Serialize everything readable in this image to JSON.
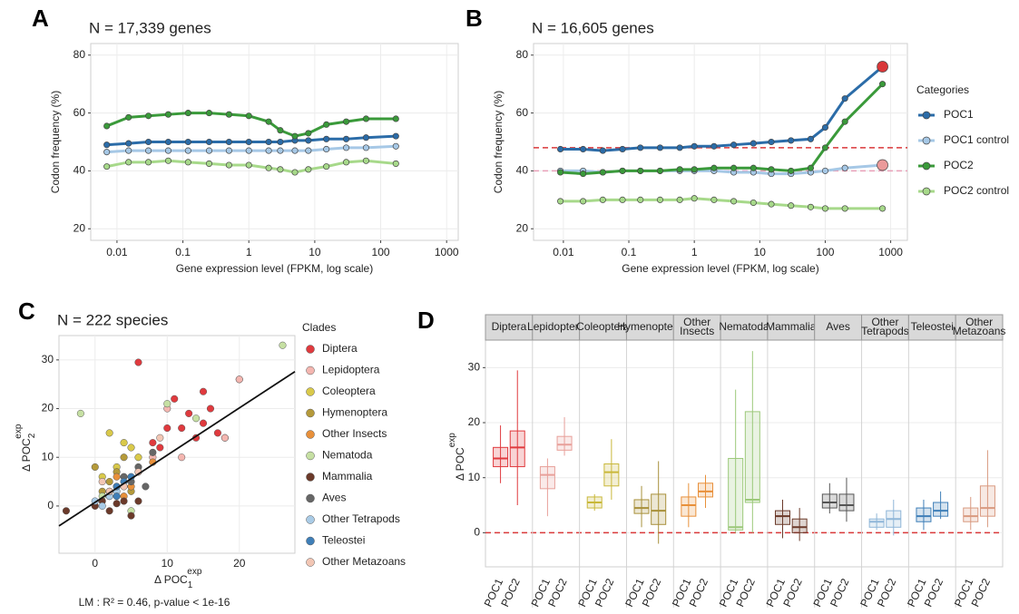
{
  "chart_data": [
    {
      "type": "line",
      "panel": "A",
      "title": "N = 17,339 genes",
      "xlabel": "Gene expression level (FPKM, log scale)",
      "ylabel": "Codon frequency (%)",
      "log_x": true,
      "grid": true,
      "legend": false,
      "xlim": [
        0.004,
        1500
      ],
      "xticks": [
        0.01,
        0.1,
        1,
        10,
        100,
        1000
      ],
      "ylim": [
        16,
        84
      ],
      "yticks": [
        20,
        40,
        60,
        80
      ],
      "x": [
        0.007,
        0.015,
        0.03,
        0.06,
        0.12,
        0.25,
        0.5,
        1,
        2,
        3,
        5,
        8,
        15,
        30,
        60,
        170
      ],
      "series": [
        {
          "name": "POC1",
          "color": "#2b6ca8",
          "values": [
            49,
            49.5,
            50,
            50,
            50,
            50,
            50,
            50,
            50,
            50,
            50.5,
            50.5,
            51,
            51,
            51.5,
            52
          ]
        },
        {
          "name": "POC1 control",
          "color": "#a6c8e6",
          "values": [
            46.5,
            47,
            47,
            47,
            47,
            47,
            47,
            47,
            47,
            47,
            47,
            47,
            47.5,
            48,
            48,
            48.5
          ]
        },
        {
          "name": "POC2",
          "color": "#3a9a3a",
          "values": [
            55.5,
            58.5,
            59,
            59.5,
            60,
            60,
            59.5,
            59,
            57,
            54,
            52,
            53,
            56,
            57,
            58,
            58
          ]
        },
        {
          "name": "POC2 control",
          "color": "#a7d98a",
          "values": [
            41.5,
            43,
            43,
            43.5,
            43,
            42.5,
            42,
            42,
            41,
            40.5,
            39.5,
            40.5,
            41.5,
            43,
            43.5,
            42.5
          ]
        }
      ]
    },
    {
      "type": "line",
      "panel": "B",
      "title": "N = 16,605 genes",
      "xlabel": "Gene expression level (FPKM, log scale)",
      "ylabel": "Codon frequency (%)",
      "log_x": true,
      "grid": true,
      "legend": "right",
      "legend_title": "Categories",
      "xlim": [
        0.0035,
        1800
      ],
      "xticks": [
        0.01,
        0.1,
        1,
        10,
        100,
        1000
      ],
      "ylim": [
        16,
        84
      ],
      "yticks": [
        20,
        40,
        60,
        80
      ],
      "hlines": [
        {
          "value": 48,
          "color": "#d9383a"
        },
        {
          "value": 40,
          "color": "#e8a0b8"
        }
      ],
      "x": [
        0.009,
        0.02,
        0.04,
        0.08,
        0.15,
        0.3,
        0.6,
        1,
        2,
        4,
        8,
        15,
        30,
        60,
        100,
        200,
        750
      ],
      "series": [
        {
          "name": "POC1",
          "color": "#2b6ca8",
          "end_marker": "#d9383a",
          "values": [
            47.5,
            47.5,
            47,
            47.5,
            48,
            48,
            48,
            48.5,
            48.5,
            49,
            49.5,
            50,
            50.5,
            51,
            55,
            65,
            76
          ]
        },
        {
          "name": "POC1 control",
          "color": "#a6c8e6",
          "end_marker": "#eb9a9a",
          "values": [
            40,
            40,
            39.5,
            40,
            40,
            40,
            40,
            40,
            40,
            39.5,
            39.5,
            39,
            39,
            39.5,
            40,
            41,
            42
          ]
        },
        {
          "name": "POC2",
          "color": "#3a9a3a",
          "values": [
            39.5,
            39,
            39.5,
            40,
            40,
            40,
            40.5,
            40.5,
            41,
            41,
            41,
            40.5,
            40,
            41,
            48,
            57,
            70
          ]
        },
        {
          "name": "POC2 control",
          "color": "#a7d98a",
          "values": [
            29.5,
            29.5,
            30,
            30,
            30,
            30,
            30,
            30.5,
            30,
            29.5,
            29,
            28.5,
            28,
            27.5,
            27,
            27,
            27
          ]
        }
      ]
    },
    {
      "type": "scatter",
      "panel": "C",
      "title": "N = 222 species",
      "legend_title": "Clades",
      "xlabel": {
        "text": "Δ POC",
        "sub": "1",
        "sup": "exp"
      },
      "ylabel": {
        "text": "Δ POC",
        "sub": "2",
        "sup": "exp"
      },
      "annotation": "LM : R² = 0.46, p-value < 1e-16",
      "xlim": [
        -5,
        27.7
      ],
      "xticks": [
        0,
        10,
        20
      ],
      "ylim": [
        -9.7,
        35
      ],
      "yticks": [
        0,
        10,
        20,
        30
      ],
      "grid": true,
      "fit": {
        "x": [
          -5,
          27.7
        ],
        "y": [
          -4.1,
          27.6
        ]
      },
      "series": [
        {
          "name": "Diptera",
          "color": "#e03a3e",
          "x": [
            6,
            10,
            12,
            13,
            15,
            16,
            14,
            9,
            18,
            11,
            17,
            20,
            15,
            8
          ],
          "y": [
            29.5,
            16,
            16,
            19,
            17,
            20,
            14,
            12,
            14,
            22,
            15,
            26,
            23.5,
            13
          ]
        },
        {
          "name": "Lepidoptera",
          "color": "#f4b6b0",
          "x": [
            20,
            8,
            10,
            12,
            18
          ],
          "y": [
            26,
            10,
            20,
            10,
            14
          ]
        },
        {
          "name": "Coleoptera",
          "color": "#d9c94a",
          "x": [
            2,
            4,
            6,
            3,
            1,
            5
          ],
          "y": [
            15,
            13,
            10,
            8,
            6,
            12
          ]
        },
        {
          "name": "Hymenoptera",
          "color": "#b59a3a",
          "x": [
            0,
            2,
            4,
            5,
            3,
            1
          ],
          "y": [
            8,
            5,
            10,
            3,
            7,
            3
          ]
        },
        {
          "name": "Other Insects",
          "color": "#e8903a",
          "x": [
            3,
            6,
            8,
            5,
            4
          ],
          "y": [
            6,
            7,
            9,
            4,
            2
          ]
        },
        {
          "name": "Nematoda",
          "color": "#c6e0a3",
          "x": [
            26,
            10,
            -2,
            5,
            14,
            1
          ],
          "y": [
            33,
            21,
            19,
            -1,
            18,
            2
          ]
        },
        {
          "name": "Mammalia",
          "color": "#6b3a2a",
          "x": [
            -4,
            0,
            1,
            2,
            3,
            4,
            5,
            2,
            6
          ],
          "y": [
            -1,
            0,
            1,
            -1,
            0.5,
            1,
            -2,
            2,
            1
          ]
        },
        {
          "name": "Aves",
          "color": "#666666",
          "x": [
            5,
            7,
            6,
            4,
            8,
            3
          ],
          "y": [
            5,
            4,
            8,
            6,
            11,
            4
          ]
        },
        {
          "name": "Other Tetrapods",
          "color": "#a9cbe6",
          "x": [
            2,
            0,
            3,
            1
          ],
          "y": [
            2,
            1,
            3,
            0
          ]
        },
        {
          "name": "Teleostei",
          "color": "#3f7fb8",
          "x": [
            3,
            4,
            2,
            5,
            3
          ],
          "y": [
            4,
            5,
            3,
            6,
            2
          ]
        },
        {
          "name": "Other Metazoans",
          "color": "#f2c6b4",
          "x": [
            2,
            4,
            9,
            6,
            1
          ],
          "y": [
            3,
            4,
            14,
            7,
            5
          ]
        }
      ]
    },
    {
      "type": "box",
      "panel": "D",
      "ylabel": {
        "text": "Δ POC",
        "sup": "exp"
      },
      "ylim": [
        -6.2,
        35
      ],
      "yticks": [
        0,
        10,
        20,
        30
      ],
      "grid": true,
      "hline": {
        "value": 0,
        "color": "#d9383a"
      },
      "categories": [
        "Diptera",
        "Lepidoptera",
        "Coleoptera",
        "Hymenoptera",
        "Other Insects",
        "Nematoda",
        "Mammalia",
        "Aves",
        "Other Tetrapods",
        "Teleostei",
        "Other Metazoans"
      ],
      "colors": [
        "#e03a3e",
        "#e8a09a",
        "#c9b83a",
        "#a8903a",
        "#e8903a",
        "#9cc87a",
        "#6b3a2a",
        "#555555",
        "#8fb6d8",
        "#3f7fb8",
        "#d99a80"
      ],
      "series": [
        {
          "name": "POC1",
          "boxes": [
            {
              "low": 9,
              "q1": 12,
              "median": 13.5,
              "q3": 15.5,
              "high": 19.5
            },
            {
              "low": 3,
              "q1": 8,
              "median": 10.5,
              "q3": 12,
              "high": 13.5
            },
            {
              "low": 4,
              "q1": 4.5,
              "median": 5.5,
              "q3": 6.5,
              "high": 7
            },
            {
              "low": 1,
              "q1": 3.5,
              "median": 4.5,
              "q3": 6,
              "high": 8.5
            },
            {
              "low": 1,
              "q1": 3,
              "median": 5,
              "q3": 6.5,
              "high": 9
            },
            {
              "low": 0,
              "q1": 0.5,
              "median": 1,
              "q3": 13.5,
              "high": 26
            },
            {
              "low": -1,
              "q1": 1.5,
              "median": 3,
              "q3": 4,
              "high": 6
            },
            {
              "low": 3.5,
              "q1": 4.5,
              "median": 5.5,
              "q3": 7,
              "high": 9
            },
            {
              "low": 0.5,
              "q1": 1,
              "median": 2,
              "q3": 2.5,
              "high": 3.5
            },
            {
              "low": 0.5,
              "q1": 2,
              "median": 3,
              "q3": 4.5,
              "high": 6
            },
            {
              "low": 0.5,
              "q1": 2,
              "median": 3,
              "q3": 4.5,
              "high": 6.5
            }
          ]
        },
        {
          "name": "POC2",
          "boxes": [
            {
              "low": 5,
              "q1": 12,
              "median": 15.5,
              "q3": 18.5,
              "high": 29.5
            },
            {
              "low": 14,
              "q1": 15,
              "median": 16,
              "q3": 17.5,
              "high": 21
            },
            {
              "low": 6,
              "q1": 8.5,
              "median": 11,
              "q3": 12.5,
              "high": 17
            },
            {
              "low": -2,
              "q1": 1.5,
              "median": 4,
              "q3": 7,
              "high": 13
            },
            {
              "low": 4.5,
              "q1": 6.5,
              "median": 7.5,
              "q3": 9,
              "high": 10.5
            },
            {
              "low": 0,
              "q1": 5.5,
              "median": 6,
              "q3": 22,
              "high": 33
            },
            {
              "low": -1.5,
              "q1": 0,
              "median": 1,
              "q3": 2.5,
              "high": 4.5
            },
            {
              "low": 2,
              "q1": 4,
              "median": 5,
              "q3": 7,
              "high": 10
            },
            {
              "low": -0.5,
              "q1": 1,
              "median": 2.5,
              "q3": 4,
              "high": 6
            },
            {
              "low": 2.5,
              "q1": 3,
              "median": 4,
              "q3": 5.5,
              "high": 7.5
            },
            {
              "low": 1,
              "q1": 3,
              "median": 4.5,
              "q3": 8.5,
              "high": 15
            }
          ]
        }
      ]
    }
  ]
}
